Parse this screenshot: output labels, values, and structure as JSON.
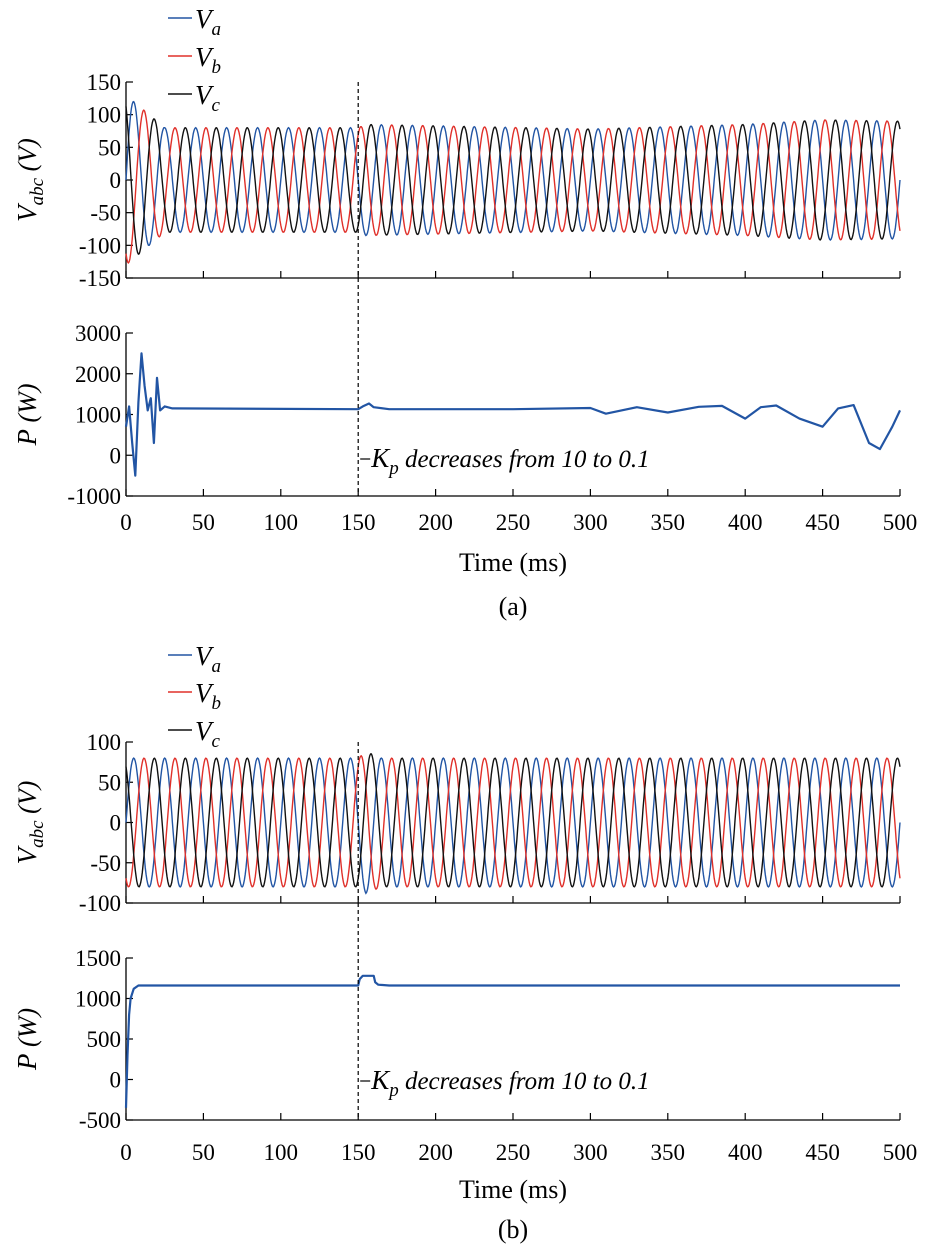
{
  "colors": {
    "Va": "#2255a4",
    "Vb": "#e0302a",
    "Vc": "#111111",
    "P": "#2255a4"
  },
  "chart_data": [
    {
      "panel": "(a)",
      "caption": "(a)",
      "type": "line",
      "xlabel": "Time (ms)",
      "xlim": [
        0,
        500
      ],
      "x_ticks": [
        "0",
        "50",
        "100",
        "150",
        "200",
        "250",
        "300",
        "350",
        "400",
        "450",
        "500"
      ],
      "event": {
        "x": 150,
        "annotation": {
          "base": "K",
          "sub": "p",
          "rest": " decreases from 10 to 0.1"
        }
      },
      "subplots": [
        {
          "name": "voltage",
          "ylabel": {
            "base": "V",
            "sub": "abc",
            "unit": " (V)"
          },
          "ylim": [
            -150,
            150
          ],
          "y_ticks": [
            "150",
            "100",
            "50",
            "0",
            "-50",
            "-100",
            "-150"
          ],
          "legend": [
            {
              "base": "V",
              "sub": "a",
              "color": "#2255a4"
            },
            {
              "base": "V",
              "sub": "b",
              "color": "#e0302a"
            },
            {
              "base": "V",
              "sub": "c",
              "color": "#111111"
            }
          ],
          "series_shape": {
            "frequency_hz": 50,
            "phase_shift_deg": 120,
            "steady_amplitude_v": 80,
            "amplitude_envelope": [
              [
                0,
                130
              ],
              [
                25,
                80
              ],
              [
                150,
                80
              ],
              [
                155,
                85
              ],
              [
                300,
                78
              ],
              [
                400,
                85
              ],
              [
                450,
                92
              ],
              [
                500,
                90
              ]
            ]
          }
        },
        {
          "name": "power",
          "ylabel": {
            "base": "P",
            "sub": "",
            "unit": " (W)"
          },
          "ylim": [
            -1000,
            3000
          ],
          "y_ticks": [
            "3000",
            "2000",
            "1000",
            "0",
            "-1000"
          ],
          "series": [
            {
              "name": "P",
              "x": [
                0,
                2,
                4,
                6,
                8,
                10,
                12,
                14,
                16,
                18,
                20,
                22,
                25,
                30,
                150,
                153,
                157,
                160,
                170,
                250,
                300,
                310,
                330,
                350,
                370,
                385,
                400,
                410,
                420,
                435,
                450,
                460,
                470,
                480,
                487,
                495,
                500
              ],
              "values": [
                700,
                1200,
                300,
                -500,
                1300,
                2500,
                1700,
                1100,
                1400,
                300,
                1900,
                1100,
                1200,
                1150,
                1130,
                1200,
                1270,
                1180,
                1130,
                1130,
                1160,
                1020,
                1180,
                1050,
                1190,
                1210,
                900,
                1180,
                1220,
                900,
                700,
                1150,
                1230,
                300,
                150,
                700,
                1100
              ]
            }
          ]
        }
      ]
    },
    {
      "panel": "(b)",
      "caption": "(b)",
      "type": "line",
      "xlabel": "Time (ms)",
      "xlim": [
        0,
        500
      ],
      "x_ticks": [
        "0",
        "50",
        "100",
        "150",
        "200",
        "250",
        "300",
        "350",
        "400",
        "450",
        "500"
      ],
      "event": {
        "x": 150,
        "annotation": {
          "base": "K",
          "sub": "p",
          "rest": " decreases from 10 to 0.1"
        }
      },
      "subplots": [
        {
          "name": "voltage",
          "ylabel": {
            "base": "V",
            "sub": "abc",
            "unit": " (V)"
          },
          "ylim": [
            -100,
            100
          ],
          "y_ticks": [
            "100",
            "50",
            "0",
            "-50",
            "-100"
          ],
          "legend": [
            {
              "base": "V",
              "sub": "a",
              "color": "#2255a4"
            },
            {
              "base": "V",
              "sub": "b",
              "color": "#e0302a"
            },
            {
              "base": "V",
              "sub": "c",
              "color": "#111111"
            }
          ],
          "series_shape": {
            "frequency_hz": 50,
            "phase_shift_deg": 120,
            "steady_amplitude_v": 80,
            "amplitude_envelope": [
              [
                0,
                80
              ],
              [
                150,
                80
              ],
              [
                155,
                88
              ],
              [
                165,
                80
              ],
              [
                500,
                80
              ]
            ]
          }
        },
        {
          "name": "power",
          "ylabel": {
            "base": "P",
            "sub": "",
            "unit": " (W)"
          },
          "ylim": [
            -500,
            1500
          ],
          "y_ticks": [
            "1500",
            "1000",
            "500",
            "0",
            "-500"
          ],
          "series": [
            {
              "name": "P",
              "x": [
                0,
                1,
                2,
                3,
                5,
                8,
                12,
                150,
                151,
                153,
                160,
                161,
                163,
                170,
                500
              ],
              "values": [
                -350,
                300,
                800,
                1000,
                1120,
                1160,
                1160,
                1160,
                1240,
                1280,
                1280,
                1200,
                1170,
                1160,
                1160
              ]
            }
          ]
        }
      ]
    }
  ]
}
